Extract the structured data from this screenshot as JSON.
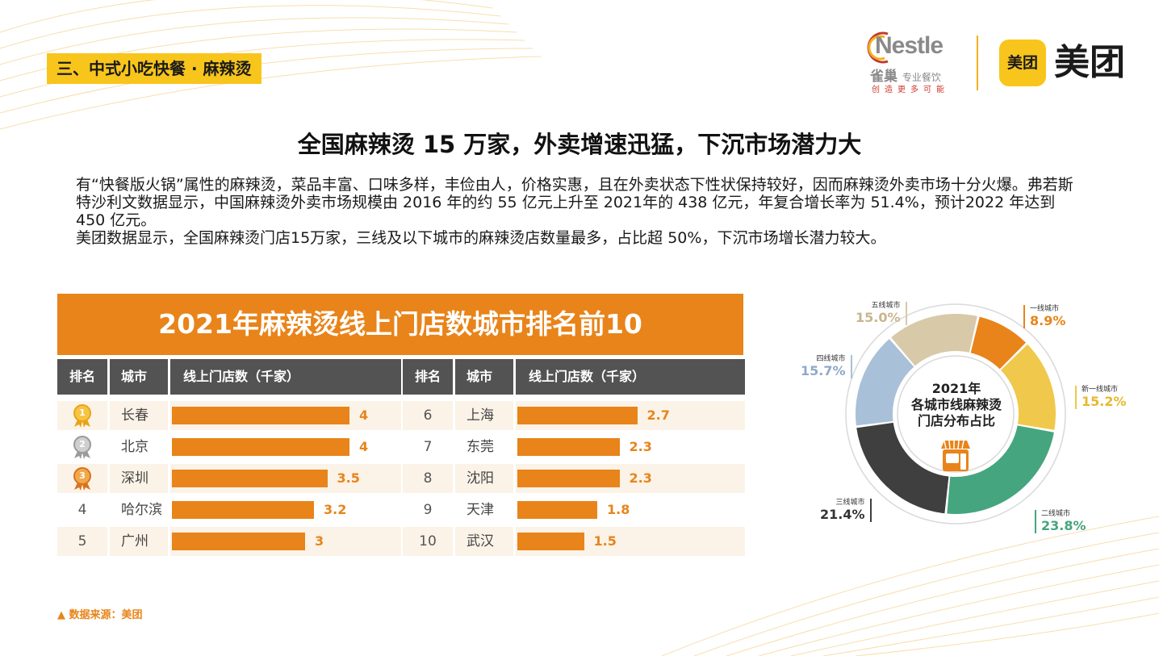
{
  "section_tag": "三、中式小吃快餐 · 麻辣烫",
  "logos": {
    "nestle_word": "Nestle",
    "nestle_cn": "雀巢",
    "nestle_cn_sub": "专业餐饮",
    "nestle_slogan": "创造更多可能",
    "meituan_badge": "美团",
    "meituan_word": "美团"
  },
  "headline": "全国麻辣烫 15 万家，外卖增速迅猛，下沉市场潜力大",
  "paragraphs": [
    "有“快餐版火锅”属性的麻辣烫，菜品丰富、口味多样，丰俭由人，价格实惠，且在外卖状态下性状保持较好，因而麻辣烫外卖市场十分火爆。弗若斯特沙利文数据显示，中国麻辣烫外卖市场规模由 2016 年的约 55 亿元上升至 2021年的 438 亿元，年复合增长率为 51.4%，预计2022 年达到 450 亿元。",
    "美团数据显示，全国麻辣烫门店15万家，三线及以下城市的麻辣烫店数量最多，占比超 50%，下沉市场增长潜力较大。"
  ],
  "source": "▲ 数据来源：美团",
  "chart_data": [
    {
      "type": "table",
      "title": "2021年麻辣烫线上门店数城市排名前10",
      "columns": [
        "排名",
        "城市",
        "线上门店数（千家）"
      ],
      "rows": [
        {
          "rank": "1",
          "city": "长春",
          "value": 4,
          "label": "4",
          "medal": "gold"
        },
        {
          "rank": "2",
          "city": "北京",
          "value": 4,
          "label": "4",
          "medal": "silver"
        },
        {
          "rank": "3",
          "city": "深圳",
          "value": 3.5,
          "label": "3.5",
          "medal": "bronze"
        },
        {
          "rank": "4",
          "city": "哈尔滨",
          "value": 3.2,
          "label": "3.2",
          "medal": ""
        },
        {
          "rank": "5",
          "city": "广州",
          "value": 3,
          "label": "3",
          "medal": ""
        },
        {
          "rank": "6",
          "city": "上海",
          "value": 2.7,
          "label": "2.7",
          "medal": ""
        },
        {
          "rank": "7",
          "city": "东莞",
          "value": 2.3,
          "label": "2.3",
          "medal": ""
        },
        {
          "rank": "8",
          "city": "沈阳",
          "value": 2.3,
          "label": "2.3",
          "medal": ""
        },
        {
          "rank": "9",
          "city": "天津",
          "value": 1.8,
          "label": "1.8",
          "medal": ""
        },
        {
          "rank": "10",
          "city": "武汉",
          "value": 1.5,
          "label": "1.5",
          "medal": ""
        }
      ],
      "bar_color": "#e8841a"
    },
    {
      "type": "pie",
      "title": "2021年各城市线麻辣烫门店分布占比",
      "title_lines": [
        "2021年",
        "各城市线麻辣烫",
        "门店分布占比"
      ],
      "slices": [
        {
          "name": "一线城市",
          "value": 8.9,
          "label": "8.9%",
          "color": "#e8841a"
        },
        {
          "name": "新一线城市",
          "value": 15.2,
          "label": "15.2%",
          "color": "#f0c84b"
        },
        {
          "name": "二线城市",
          "value": 23.8,
          "label": "23.8%",
          "color": "#45a57f"
        },
        {
          "name": "三线城市",
          "value": 21.4,
          "label": "21.4%",
          "color": "#3f3f3f"
        },
        {
          "name": "四线城市",
          "value": 15.7,
          "label": "15.7%",
          "color": "#a9c0d9"
        },
        {
          "name": "五线城市",
          "value": 15.0,
          "label": "15.0%",
          "color": "#d8c9a8"
        }
      ]
    }
  ]
}
